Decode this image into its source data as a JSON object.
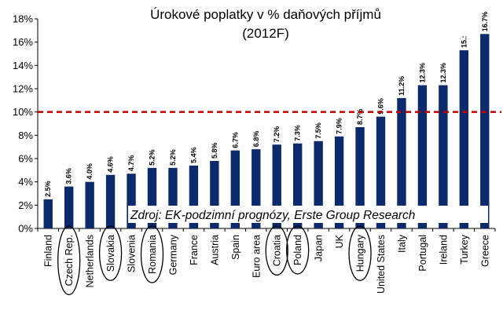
{
  "chart_data": {
    "type": "bar",
    "title": "Úrokové poplatky v % daňových příjmů",
    "subtitle": "(2012F)",
    "xlabel": "",
    "ylabel": "",
    "ylim": [
      0,
      18
    ],
    "y_ticks": [
      "0%",
      "2%",
      "4%",
      "6%",
      "8%",
      "10%",
      "12%",
      "14%",
      "16%",
      "18%"
    ],
    "categories": [
      "Finland",
      "Czech Rep.",
      "Netherlands",
      "Slovakia",
      "Slovenia",
      "Romania",
      "Germany",
      "France",
      "Austria",
      "Spain",
      "Euro area",
      "Croatia",
      "Poland",
      "Japan",
      "UK",
      "Hungary",
      "United States",
      "Italy",
      "Portugal",
      "Ireland",
      "Turkey",
      "Greece"
    ],
    "values": [
      2.5,
      3.6,
      4.0,
      4.6,
      4.7,
      5.2,
      5.2,
      5.4,
      5.8,
      6.7,
      6.8,
      7.2,
      7.3,
      7.5,
      7.9,
      8.7,
      9.6,
      11.2,
      12.3,
      12.3,
      15.3,
      16.7
    ],
    "value_labels": [
      "2.5%",
      "3.6%",
      "4.0%",
      "4.6%",
      "4.7%",
      "5.2%",
      "5.2%",
      "5.4%",
      "5.8%",
      "6.7%",
      "6.8%",
      "7.2%",
      "7.3%",
      "7.5%",
      "7.9%",
      "8.7%",
      "9.6%",
      "11.2%",
      "12.3%",
      "12.3%",
      "15.:",
      "16.7%"
    ],
    "highlighted_categories": [
      "Czech Rep.",
      "Slovakia",
      "Romania",
      "Croatia",
      "Poland",
      "Hungary"
    ],
    "reference_line": {
      "value": 10,
      "style": "dashed",
      "color": "#c00000"
    },
    "annotation": "Zdroj: EK-podzimní prognózy, Erste Group Research",
    "bar_color": "#0b2a6b",
    "grid": false
  }
}
